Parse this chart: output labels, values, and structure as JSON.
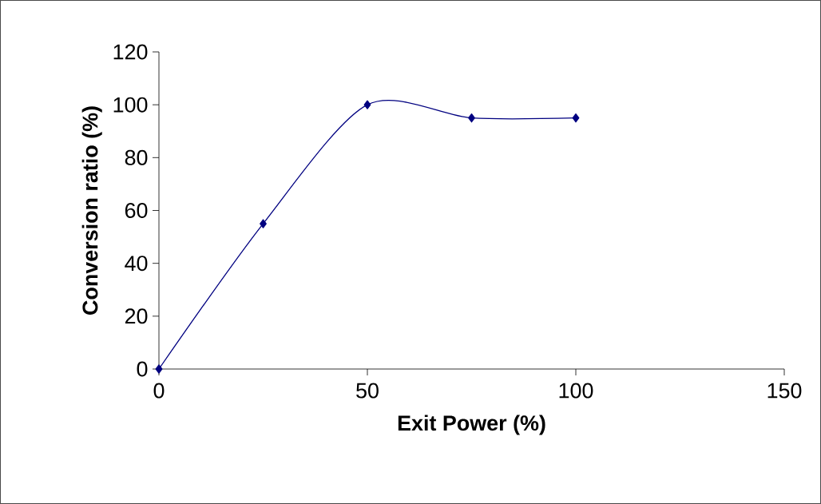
{
  "chart_data": {
    "type": "line",
    "xlabel": "Exit Power (%)",
    "ylabel": "Conversion ratio (%)",
    "x": [
      0,
      25,
      50,
      75,
      100
    ],
    "series": [
      {
        "color": "#000080",
        "values": [
          0,
          55,
          100,
          95,
          95
        ]
      }
    ],
    "xlim": [
      0,
      150
    ],
    "xticks": [
      0,
      50,
      100,
      150
    ],
    "ylim": [
      0,
      120
    ],
    "yticks": [
      0,
      20,
      40,
      60,
      80,
      100,
      120
    ],
    "marker": "diamond",
    "line_style": "solid",
    "grid": false
  }
}
